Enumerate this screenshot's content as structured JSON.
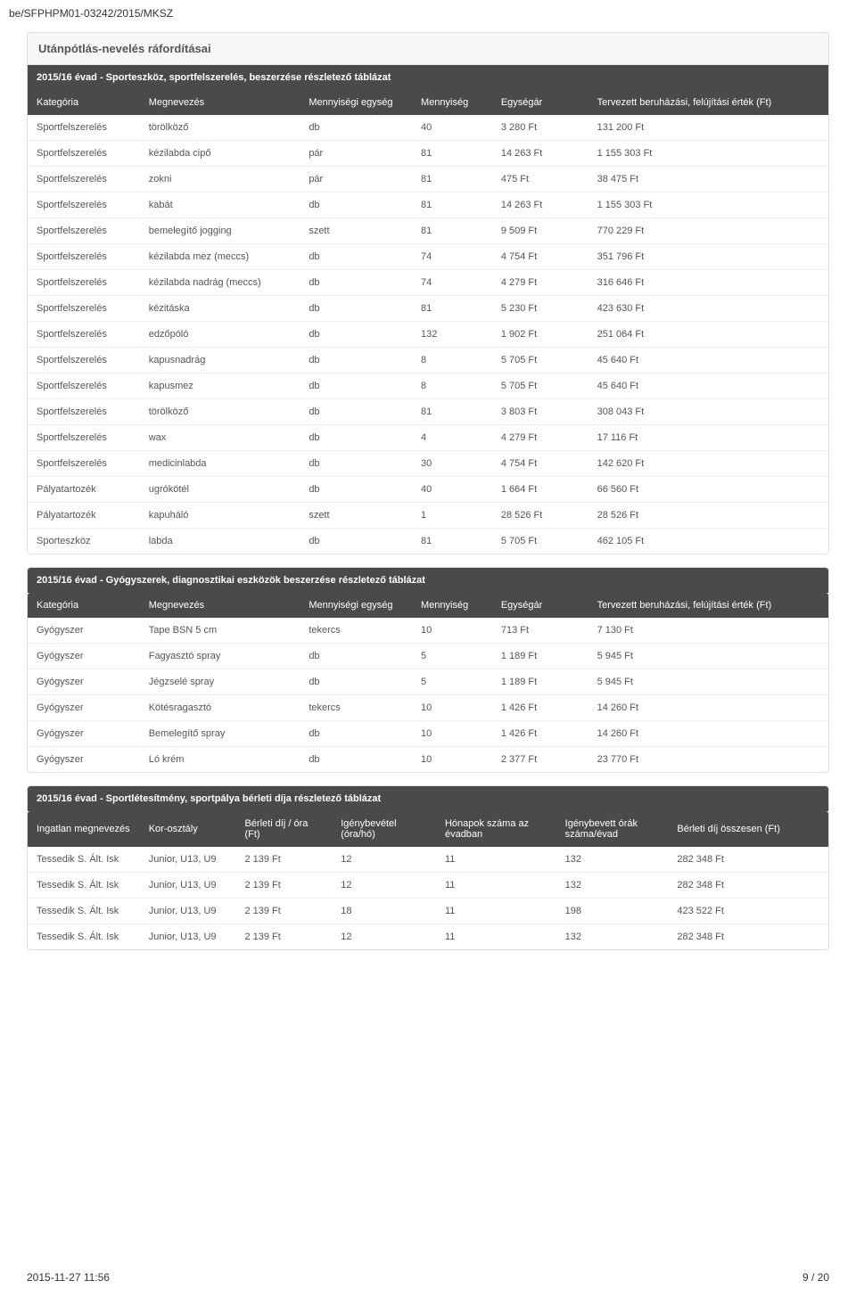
{
  "doc_ref": "be/SFPHPM01-03242/2015/MKSZ",
  "section1": {
    "title": "Utánpótlás-nevelés ráfordításai",
    "table_title": "2015/16 évad - Sporteszköz, sportfelszerelés, beszerzése részletező táblázat",
    "headers": [
      "Kategória",
      "Megnevezés",
      "Mennyiségi egység",
      "Mennyiség",
      "Egységár",
      "Tervezett beruházási, felújítási érték (Ft)"
    ],
    "rows": [
      [
        "Sportfelszerelés",
        "törölköző",
        "db",
        "40",
        "3 280 Ft",
        "131 200 Ft"
      ],
      [
        "Sportfelszerelés",
        "kézilabda cipő",
        "pár",
        "81",
        "14 263 Ft",
        "1 155 303 Ft"
      ],
      [
        "Sportfelszerelés",
        "zokni",
        "pár",
        "81",
        "475 Ft",
        "38 475 Ft"
      ],
      [
        "Sportfelszerelés",
        "kabát",
        "db",
        "81",
        "14 263 Ft",
        "1 155 303 Ft"
      ],
      [
        "Sportfelszerelés",
        "bemelegítő jogging",
        "szett",
        "81",
        "9 509 Ft",
        "770 229 Ft"
      ],
      [
        "Sportfelszerelés",
        "kézilabda mez (meccs)",
        "db",
        "74",
        "4 754 Ft",
        "351 796 Ft"
      ],
      [
        "Sportfelszerelés",
        "kézilabda nadrág (meccs)",
        "db",
        "74",
        "4 279 Ft",
        "316 646 Ft"
      ],
      [
        "Sportfelszerelés",
        "kézitáska",
        "db",
        "81",
        "5 230 Ft",
        "423 630 Ft"
      ],
      [
        "Sportfelszerelés",
        "edzőpóló",
        "db",
        "132",
        "1 902 Ft",
        "251 064 Ft"
      ],
      [
        "Sportfelszerelés",
        "kapusnadrág",
        "db",
        "8",
        "5 705 Ft",
        "45 640 Ft"
      ],
      [
        "Sportfelszerelés",
        "kapusmez",
        "db",
        "8",
        "5 705 Ft",
        "45 640 Ft"
      ],
      [
        "Sportfelszerelés",
        "törölköző",
        "db",
        "81",
        "3 803 Ft",
        "308 043 Ft"
      ],
      [
        "Sportfelszerelés",
        "wax",
        "db",
        "4",
        "4 279 Ft",
        "17 116 Ft"
      ],
      [
        "Sportfelszerelés",
        "medicinlabda",
        "db",
        "30",
        "4 754 Ft",
        "142 620 Ft"
      ],
      [
        "Pályatartozék",
        "ugrókötél",
        "db",
        "40",
        "1 664 Ft",
        "66 560 Ft"
      ],
      [
        "Pályatartozék",
        "kapuháló",
        "szett",
        "1",
        "28 526 Ft",
        "28 526 Ft"
      ],
      [
        "Sporteszköz",
        "labda",
        "db",
        "81",
        "5 705 Ft",
        "462 105 Ft"
      ]
    ]
  },
  "section2": {
    "table_title": "2015/16 évad - Gyógyszerek, diagnosztikai eszközök beszerzése részletező táblázat",
    "headers": [
      "Kategória",
      "Megnevezés",
      "Mennyiségi egység",
      "Mennyiség",
      "Egységár",
      "Tervezett beruházási, felújítási érték (Ft)"
    ],
    "rows": [
      [
        "Gyógyszer",
        "Tape BSN 5 cm",
        "tekercs",
        "10",
        "713 Ft",
        "7 130 Ft"
      ],
      [
        "Gyógyszer",
        "Fagyasztó spray",
        "db",
        "5",
        "1 189 Ft",
        "5 945 Ft"
      ],
      [
        "Gyógyszer",
        "Jégzselé spray",
        "db",
        "5",
        "1 189 Ft",
        "5 945 Ft"
      ],
      [
        "Gyógyszer",
        "Kötésragasztó",
        "tekercs",
        "10",
        "1 426 Ft",
        "14 260 Ft"
      ],
      [
        "Gyógyszer",
        "Bemelegítő spray",
        "db",
        "10",
        "1 426 Ft",
        "14 260 Ft"
      ],
      [
        "Gyógyszer",
        "Ló krém",
        "db",
        "10",
        "2 377 Ft",
        "23 770 Ft"
      ]
    ]
  },
  "section3": {
    "table_title": "2015/16 évad - Sportlétesítmény, sportpálya bérleti díja részletező táblázat",
    "headers": [
      "Ingatlan megnevezés",
      "Kor-osztály",
      "Bérleti díj / óra (Ft)",
      "Igénybevétel (óra/hó)",
      "Hónapok száma az évadban",
      "Igénybevett órák száma/évad",
      "Bérleti díj összesen (Ft)"
    ],
    "rows": [
      [
        "Tessedik S. Ált. Isk",
        "Junior, U13, U9",
        "2 139 Ft",
        "12",
        "11",
        "132",
        "282 348 Ft"
      ],
      [
        "Tessedik S. Ált. Isk",
        "Junior, U13, U9",
        "2 139 Ft",
        "12",
        "11",
        "132",
        "282 348 Ft"
      ],
      [
        "Tessedik S. Ált. Isk",
        "Junior, U13, U9",
        "2 139 Ft",
        "18",
        "11",
        "198",
        "423 522 Ft"
      ],
      [
        "Tessedik S. Ált. Isk",
        "Junior, U13, U9",
        "2 139 Ft",
        "12",
        "11",
        "132",
        "282 348 Ft"
      ]
    ]
  },
  "footer": {
    "left": "2015-11-27 11:56",
    "right": "9 / 20"
  },
  "colwidths1": [
    "14%",
    "20%",
    "14%",
    "10%",
    "12%",
    "30%"
  ],
  "colwidths3": [
    "14%",
    "12%",
    "12%",
    "13%",
    "15%",
    "14%",
    "20%"
  ]
}
